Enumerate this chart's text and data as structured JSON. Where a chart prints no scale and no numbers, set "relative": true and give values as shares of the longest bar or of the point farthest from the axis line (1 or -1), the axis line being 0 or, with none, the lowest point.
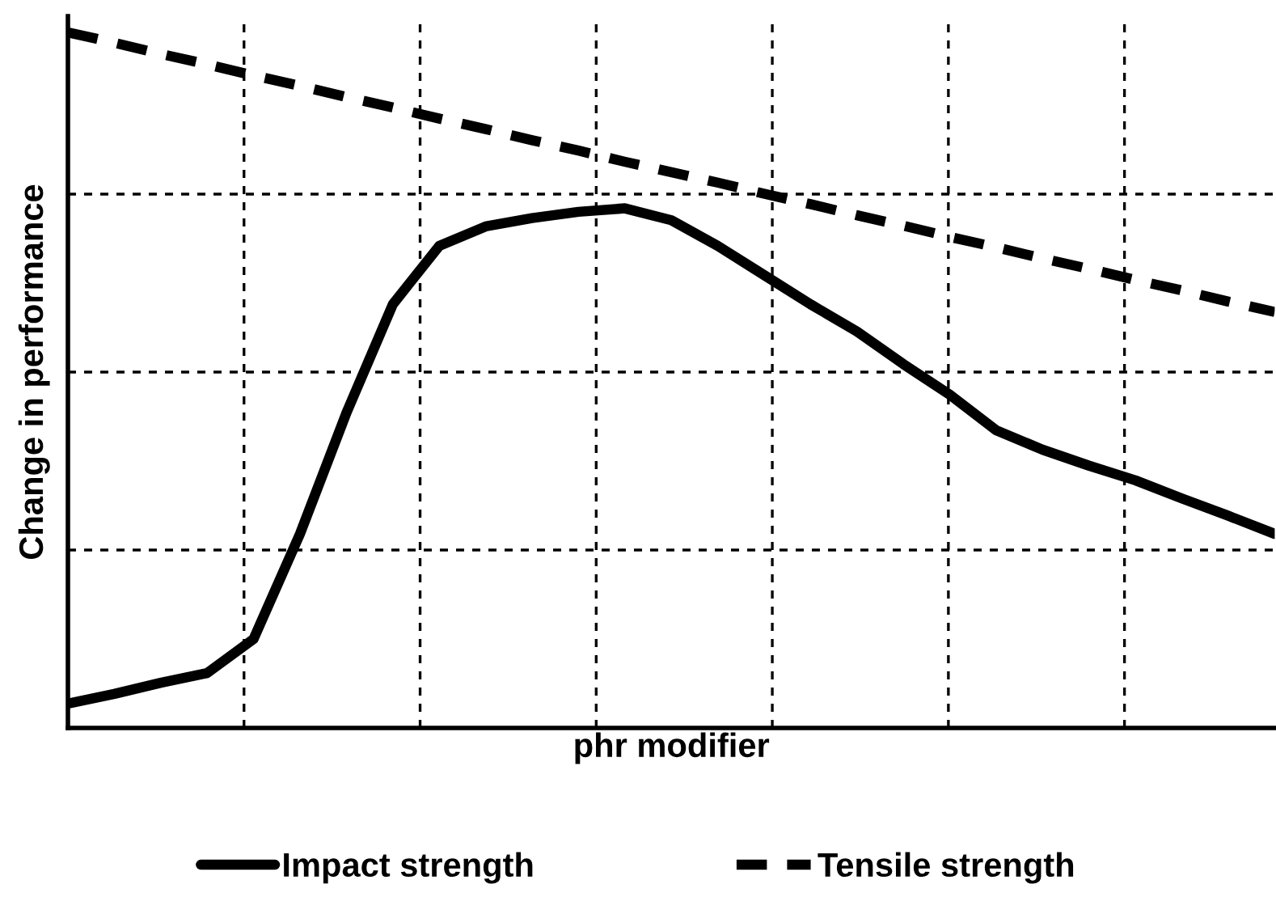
{
  "chart_data": {
    "type": "line",
    "xlabel": "phr modifier",
    "ylabel": "Change in performance",
    "relative": true,
    "grid": true,
    "legend": "bottom",
    "tick_labels": false,
    "categories": [
      null,
      null,
      null,
      null,
      null,
      null,
      null,
      null,
      null,
      null,
      null,
      null,
      null,
      null,
      null,
      null,
      null,
      null,
      null,
      null,
      null,
      null,
      null,
      null,
      null,
      null,
      null
    ],
    "series": [
      {
        "name": "Impact strength",
        "color": "#000000",
        "line_style": "solid",
        "values": [
          0.035,
          0.049,
          0.065,
          0.079,
          0.128,
          0.279,
          0.453,
          0.609,
          0.693,
          0.721,
          0.733,
          0.742,
          0.747,
          0.73,
          0.693,
          0.651,
          0.609,
          0.57,
          0.523,
          0.479,
          0.428,
          0.4,
          0.377,
          0.356,
          0.33,
          0.305,
          0.279
        ]
      },
      {
        "name": "Tensile strength",
        "color": "#000000",
        "line_style": "dashed",
        "values": [
          1,
          0.985,
          0.969,
          0.954,
          0.938,
          0.923,
          0.907,
          0.892,
          0.876,
          0.861,
          0.845,
          0.83,
          0.814,
          0.799,
          0.784,
          0.768,
          0.753,
          0.737,
          0.722,
          0.706,
          0.691,
          0.675,
          0.66,
          0.644,
          0.629,
          0.613,
          0.598
        ]
      }
    ]
  }
}
